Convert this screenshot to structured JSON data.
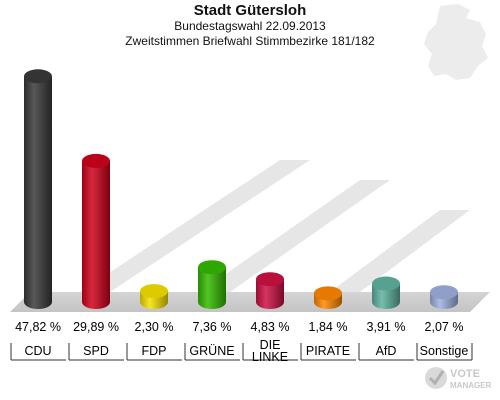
{
  "header": {
    "title": "Stadt Gütersloh",
    "subtitle1": "Bundestagswahl 22.09.2013",
    "subtitle2": "Zweitstimmen Briefwahl Stimmbezirke 181/182"
  },
  "logo": {
    "line1": "VOTE",
    "line2": "MANAGER"
  },
  "chart_data": {
    "type": "bar",
    "title": "Stadt Gütersloh",
    "subtitle": "Bundestagswahl 22.09.2013 — Zweitstimmen Briefwahl Stimmbezirke 181/182",
    "xlabel": "",
    "ylabel": "",
    "ylim": [
      0,
      50
    ],
    "grid": false,
    "unit": "%",
    "categories": [
      "CDU",
      "SPD",
      "FDP",
      "GRÜNE",
      "DIE LINKE",
      "PIRATE",
      "AfD",
      "Sonstige"
    ],
    "values": [
      47.82,
      29.89,
      2.3,
      7.36,
      4.83,
      1.84,
      3.91,
      2.07
    ],
    "value_labels": [
      "47,82 %",
      "29,89 %",
      "2,30 %",
      "7,36 %",
      "4,83 %",
      "1,84 %",
      "3,91 %",
      "2,07 %"
    ],
    "colors": [
      "#3a3a3a",
      "#d0021b",
      "#f5e100",
      "#33bb00",
      "#cc1144",
      "#ff8800",
      "#5fb3a0",
      "#a0b0e0"
    ]
  }
}
